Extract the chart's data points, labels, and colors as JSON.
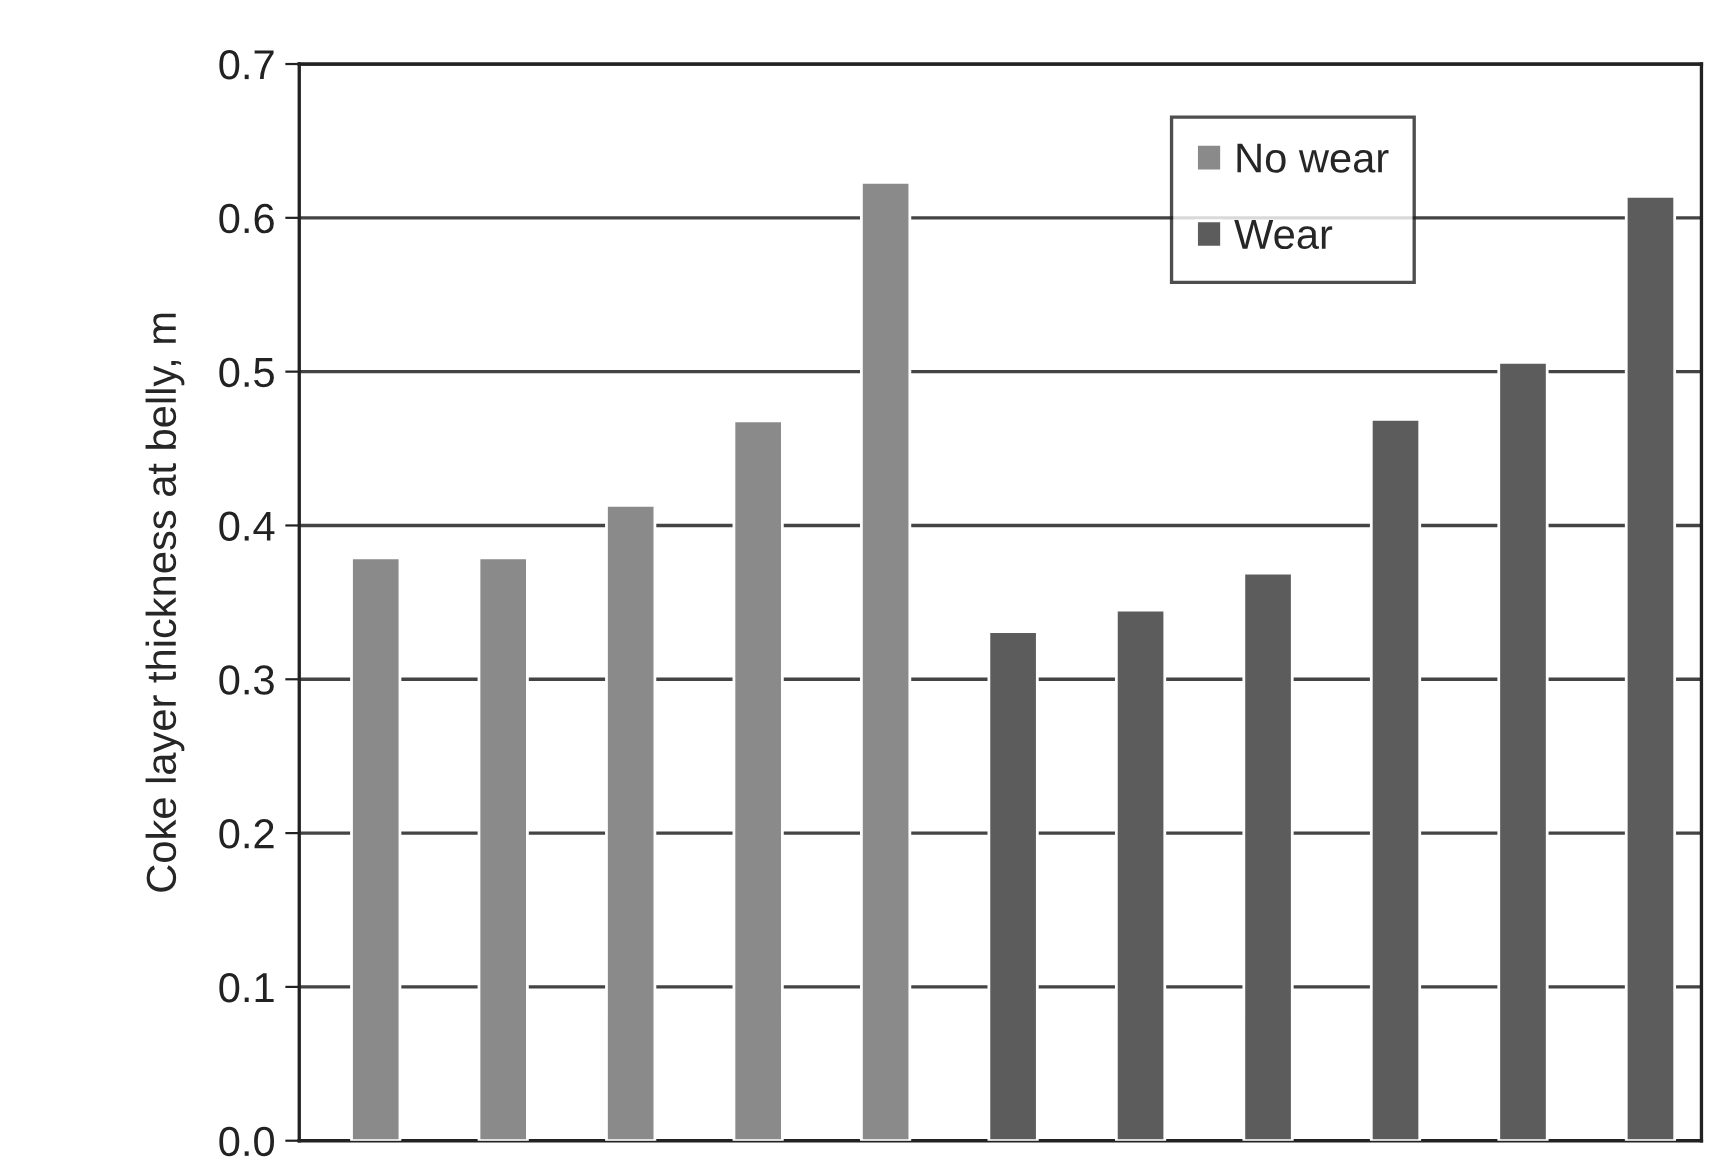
{
  "chart_data": {
    "type": "bar",
    "ylabel": "Coke layer thickness at belly, m",
    "categories": [
      null,
      null,
      null,
      null,
      null,
      null,
      null,
      null,
      null,
      null,
      null
    ],
    "series": [
      {
        "name": "No wear",
        "color": "#8a8a8a",
        "values": [
          0.379,
          0.379,
          0.413,
          0.468,
          0.623,
          null,
          null,
          null,
          null,
          null,
          null
        ]
      },
      {
        "name": "Wear",
        "color": "#5c5c5c",
        "values": [
          null,
          null,
          null,
          null,
          null,
          0.331,
          0.345,
          0.369,
          0.469,
          0.506,
          0.614
        ]
      }
    ],
    "ylim": [
      0,
      0.7
    ],
    "yticks": [
      {
        "value": 0,
        "label": "0.0"
      },
      {
        "value": 0.1,
        "label": "0.1"
      },
      {
        "value": 0.2,
        "label": "0.2"
      },
      {
        "value": 0.3,
        "label": "0.3"
      },
      {
        "value": 0.4,
        "label": "0.4"
      },
      {
        "value": 0.5,
        "label": "0.5"
      },
      {
        "value": 0.6,
        "label": "0.6"
      },
      {
        "value": 0.7,
        "label": "0.7"
      }
    ],
    "grid": "y",
    "legend": "top right",
    "tick_labels": "y"
  }
}
